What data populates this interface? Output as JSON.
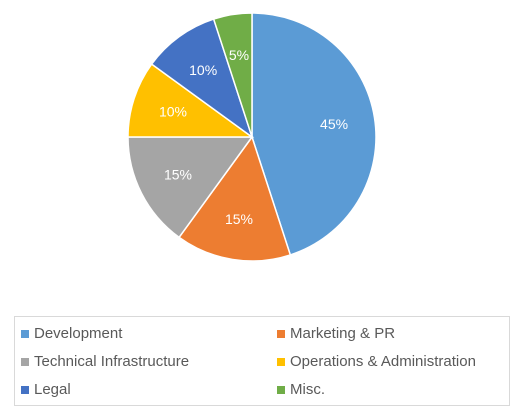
{
  "chart_data": {
    "type": "pie",
    "title": "",
    "unit": "%",
    "slices": [
      {
        "name": "Development",
        "value": 45,
        "label": "45%",
        "color": "#5b9bd5"
      },
      {
        "name": "Marketing & PR",
        "value": 15,
        "label": "15%",
        "color": "#ed7d31"
      },
      {
        "name": "Technical Infrastructure",
        "value": 15,
        "label": "15%",
        "color": "#a5a5a5"
      },
      {
        "name": "Operations & Administration",
        "value": 10,
        "label": "10%",
        "color": "#ffc000"
      },
      {
        "name": "Legal",
        "value": 10,
        "label": "10%",
        "color": "#4472c4"
      },
      {
        "name": "Misc.",
        "value": 5,
        "label": "5%",
        "color": "#70ad47"
      }
    ],
    "start_angle_deg": 0,
    "direction": "clockwise",
    "legend_position": "bottom",
    "legend_columns": 2
  }
}
